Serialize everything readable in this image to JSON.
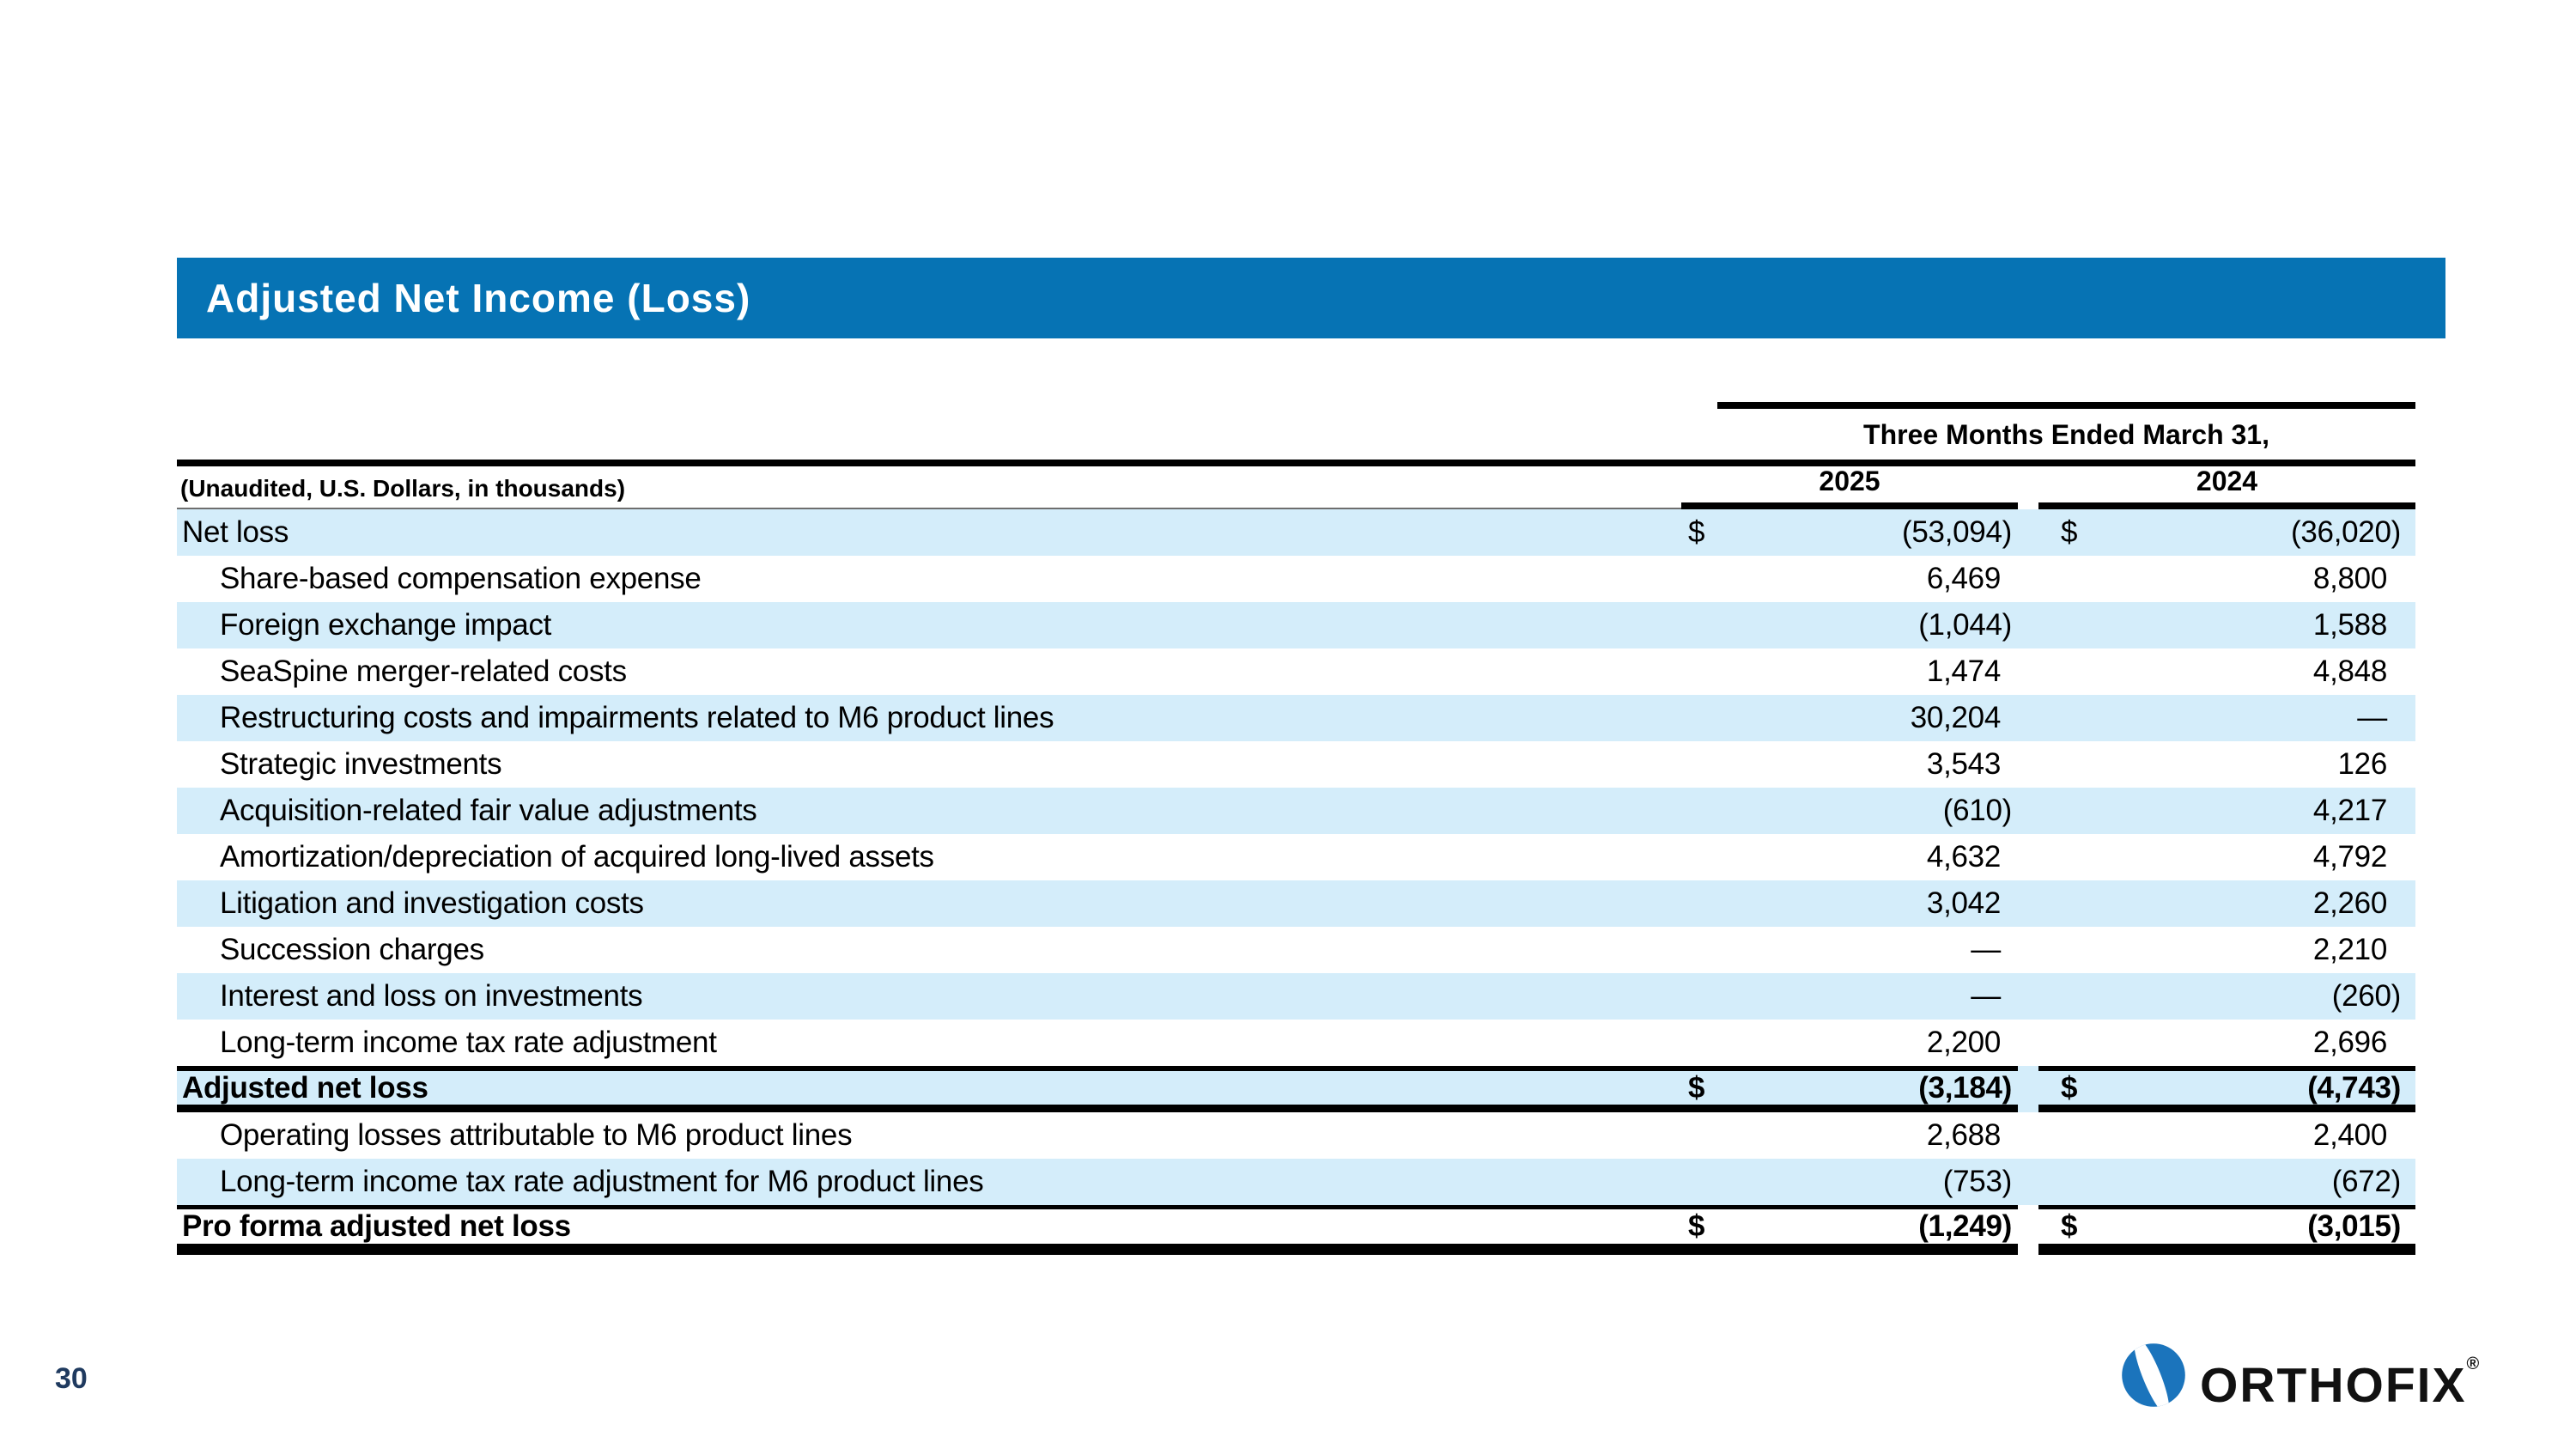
{
  "slide": {
    "title": "Adjusted Net Income (Loss)",
    "page_number": "30",
    "logo_text": "ORTHOFIX",
    "logo_reg": "®"
  },
  "colors": {
    "accent_blue": "#0673B4",
    "stripe_blue": "#D4EDFA",
    "page_number_navy": "#1F3A5F",
    "logo_blue": "#1B74BC",
    "rule_black": "#000000",
    "title_text": "#FFFFFF"
  },
  "table": {
    "period_header": "Three Months Ended March 31,",
    "unit_note": "(Unaudited, U.S. Dollars, in thousands)",
    "col_2025": "2025",
    "col_2024": "2024",
    "currency_symbol": "$",
    "rows": [
      {
        "label": "Net loss",
        "indent": false,
        "bold": false,
        "dollar": true,
        "v2025": "(53,094)",
        "v2024": "(36,020)",
        "stripe": true,
        "style": ""
      },
      {
        "label": "Share-based compensation expense",
        "indent": true,
        "bold": false,
        "dollar": false,
        "v2025": "6,469",
        "v2024": "8,800",
        "stripe": false,
        "style": ""
      },
      {
        "label": "Foreign exchange impact",
        "indent": true,
        "bold": false,
        "dollar": false,
        "v2025": "(1,044)",
        "v2024": "1,588",
        "stripe": true,
        "style": ""
      },
      {
        "label": "SeaSpine merger-related costs",
        "indent": true,
        "bold": false,
        "dollar": false,
        "v2025": "1,474",
        "v2024": "4,848",
        "stripe": false,
        "style": ""
      },
      {
        "label": "Restructuring costs and impairments related to M6 product lines",
        "indent": true,
        "bold": false,
        "dollar": false,
        "v2025": "30,204",
        "v2024": "—",
        "stripe": true,
        "style": ""
      },
      {
        "label": "Strategic investments",
        "indent": true,
        "bold": false,
        "dollar": false,
        "v2025": "3,543",
        "v2024": "126",
        "stripe": false,
        "style": ""
      },
      {
        "label": "Acquisition-related fair value adjustments",
        "indent": true,
        "bold": false,
        "dollar": false,
        "v2025": "(610)",
        "v2024": "4,217",
        "stripe": true,
        "style": ""
      },
      {
        "label": "Amortization/depreciation of acquired long-lived assets",
        "indent": true,
        "bold": false,
        "dollar": false,
        "v2025": "4,632",
        "v2024": "4,792",
        "stripe": false,
        "style": ""
      },
      {
        "label": "Litigation and investigation costs",
        "indent": true,
        "bold": false,
        "dollar": false,
        "v2025": "3,042",
        "v2024": "2,260",
        "stripe": true,
        "style": ""
      },
      {
        "label": "Succession charges",
        "indent": true,
        "bold": false,
        "dollar": false,
        "v2025": "—",
        "v2024": "2,210",
        "stripe": false,
        "style": ""
      },
      {
        "label": "Interest and loss on investments",
        "indent": true,
        "bold": false,
        "dollar": false,
        "v2025": "—",
        "v2024": "(260)",
        "stripe": true,
        "style": ""
      },
      {
        "label": "Long-term income tax rate adjustment",
        "indent": true,
        "bold": false,
        "dollar": false,
        "v2025": "2,200",
        "v2024": "2,696",
        "stripe": false,
        "style": ""
      },
      {
        "label": "Adjusted net loss",
        "indent": false,
        "bold": true,
        "dollar": true,
        "v2025": "(3,184)",
        "v2024": "(4,743)",
        "stripe": true,
        "style": "subtotal"
      },
      {
        "label": "Operating losses attributable to M6 product lines",
        "indent": true,
        "bold": false,
        "dollar": false,
        "v2025": "2,688",
        "v2024": "2,400",
        "stripe": false,
        "style": ""
      },
      {
        "label": "Long-term income tax rate adjustment for M6 product lines",
        "indent": true,
        "bold": false,
        "dollar": false,
        "v2025": "(753)",
        "v2024": "(672)",
        "stripe": true,
        "style": ""
      },
      {
        "label": "Pro forma adjusted net loss",
        "indent": false,
        "bold": true,
        "dollar": true,
        "v2025": "(1,249)",
        "v2024": "(3,015)",
        "stripe": false,
        "style": "total"
      }
    ]
  }
}
